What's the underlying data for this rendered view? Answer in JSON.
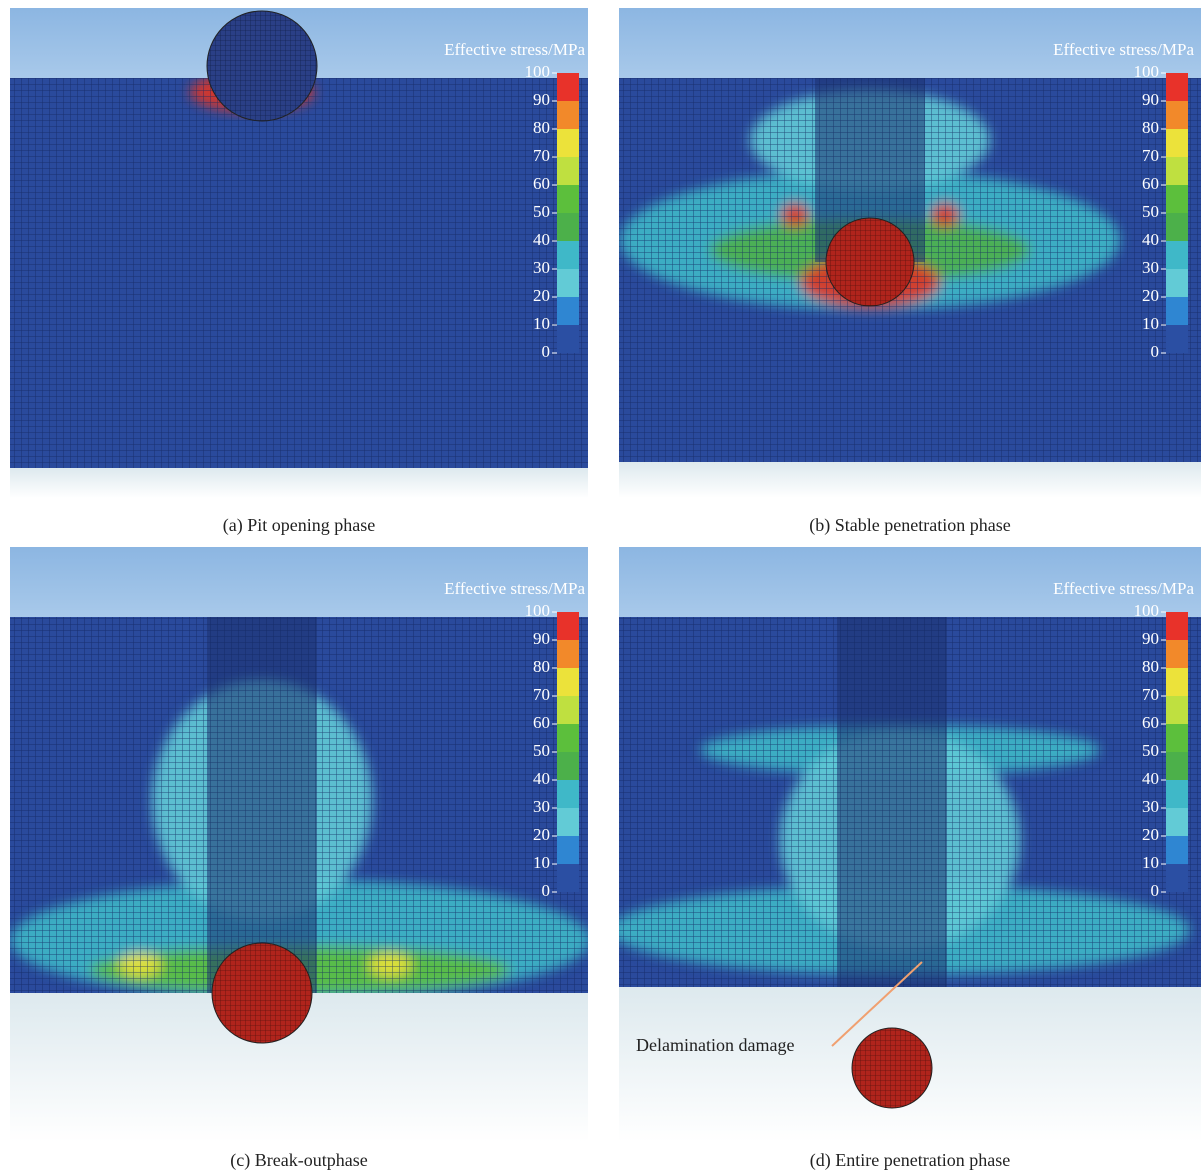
{
  "panels": [
    {
      "caption": "(a)  Pit opening phase",
      "colorbar": {
        "title": "Effective stress/MPa",
        "ticks": [
          100,
          90,
          80,
          70,
          60,
          50,
          40,
          30,
          20,
          10,
          0
        ]
      }
    },
    {
      "caption": "(b) Stable penetration phase",
      "colorbar": {
        "title": "Effective stress/MPa",
        "ticks": [
          100,
          90,
          80,
          70,
          60,
          50,
          40,
          30,
          20,
          10,
          0
        ]
      }
    },
    {
      "caption": "(c)  Break-outphase",
      "colorbar": {
        "title": "Effective stress/MPa",
        "ticks": [
          100,
          90,
          80,
          70,
          60,
          50,
          40,
          30,
          20,
          10,
          0
        ]
      }
    },
    {
      "caption": "(d) Entire penetration phase",
      "colorbar": {
        "title": "Effective stress/MPa",
        "ticks": [
          100,
          90,
          80,
          70,
          60,
          50,
          40,
          30,
          20,
          10,
          0
        ]
      },
      "annotation": "Delamination damage"
    }
  ]
}
